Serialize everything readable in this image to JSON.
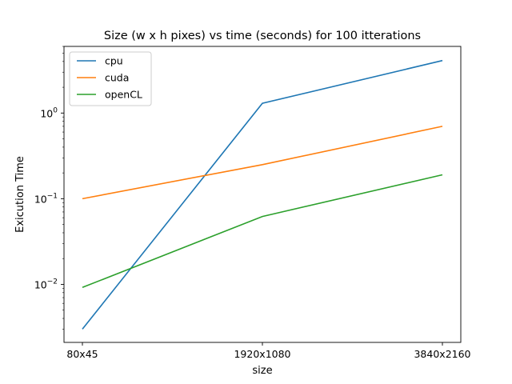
{
  "chart_data": {
    "type": "line",
    "title": "Size (w x h pixes) vs time (seconds) for 100 itterations",
    "xlabel": "size",
    "ylabel": "Exicution Time",
    "categories": [
      "80x45",
      "1920x1080",
      "3840x2160"
    ],
    "yscale": "log",
    "ylim": [
      0.0021,
      6.0
    ],
    "y_ticks": [
      {
        "value": 0.01,
        "base": "10",
        "exp": "−2"
      },
      {
        "value": 0.1,
        "base": "10",
        "exp": "−1"
      },
      {
        "value": 1,
        "base": "10",
        "exp": "0"
      }
    ],
    "grid": false,
    "legend_position": "upper-left",
    "series": [
      {
        "name": "cpu",
        "color": "#1f77b4",
        "values": [
          0.003,
          1.3,
          4.1
        ]
      },
      {
        "name": "cuda",
        "color": "#ff7f0e",
        "values": [
          0.1,
          0.25,
          0.7
        ]
      },
      {
        "name": "openCL",
        "color": "#2ca02c",
        "values": [
          0.0092,
          0.062,
          0.19
        ]
      }
    ]
  }
}
